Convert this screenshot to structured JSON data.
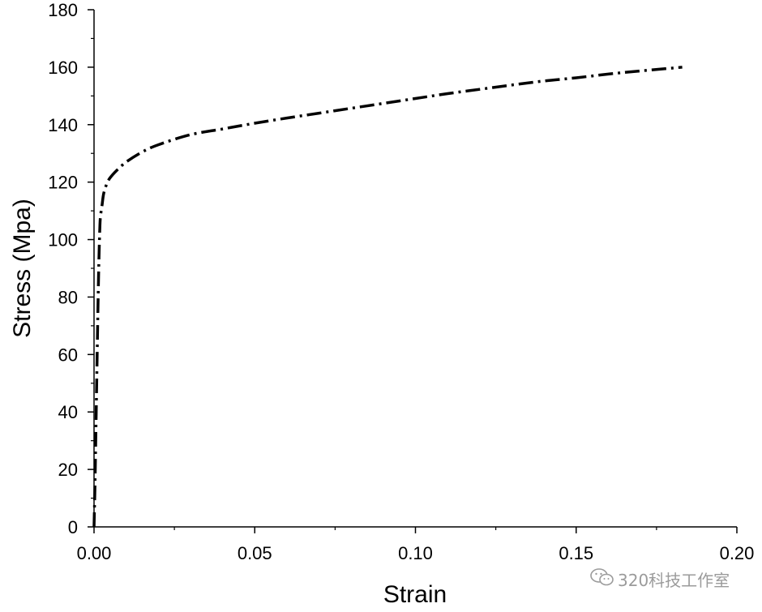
{
  "chart_data": {
    "type": "line",
    "xlabel": "Strain",
    "ylabel": "Stress (Mpa)",
    "xlim": [
      0,
      0.2
    ],
    "ylim": [
      0,
      180
    ],
    "xticks": [
      "0.00",
      "0.05",
      "0.10",
      "0.15",
      "0.20"
    ],
    "yticks": [
      "0",
      "20",
      "40",
      "60",
      "80",
      "100",
      "120",
      "140",
      "160",
      "180"
    ],
    "grid": false,
    "line_style": "dash-dot",
    "line_color": "#000000",
    "series": [
      {
        "x": [
          0,
          0.0003,
          0.0006,
          0.0009,
          0.0012,
          0.0015,
          0.0018,
          0.002,
          0.0025,
          0.003,
          0.004,
          0.005,
          0.007,
          0.01,
          0.015,
          0.02,
          0.03,
          0.04,
          0.05,
          0.06,
          0.07,
          0.08,
          0.09,
          0.1,
          0.11,
          0.12,
          0.13,
          0.14,
          0.15,
          0.16,
          0.17,
          0.183
        ],
        "y": [
          0,
          15,
          35,
          55,
          75,
          92,
          104,
          108,
          112,
          116,
          119.5,
          121.5,
          124,
          127,
          130.5,
          133,
          136.5,
          138.5,
          140.5,
          142.3,
          144,
          145.7,
          147.4,
          149.1,
          150.8,
          152.3,
          153.8,
          155.2,
          156.3,
          157.6,
          158.7,
          160
        ]
      }
    ]
  },
  "watermark": {
    "icon": "wechat-icon",
    "text": "320科技工作室"
  }
}
